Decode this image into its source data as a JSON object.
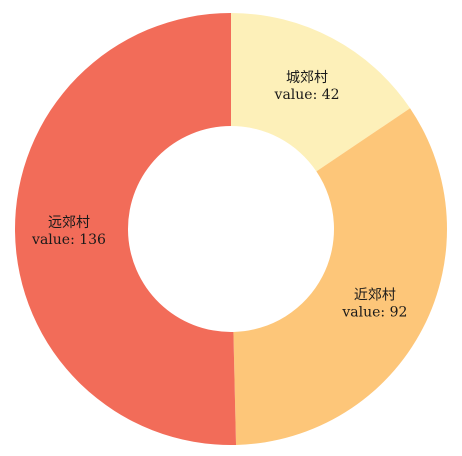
{
  "chart_data": {
    "type": "pie",
    "variant": "donut",
    "start_angle_deg": 0,
    "direction": "clockwise",
    "value_prefix": "value: ",
    "slices": [
      {
        "label": "城郊村",
        "value": 42,
        "color": "#fdf0b9"
      },
      {
        "label": "近郊村",
        "value": 92,
        "color": "#fdc679"
      },
      {
        "label": "远郊村",
        "value": 136,
        "color": "#f26c59"
      }
    ]
  }
}
